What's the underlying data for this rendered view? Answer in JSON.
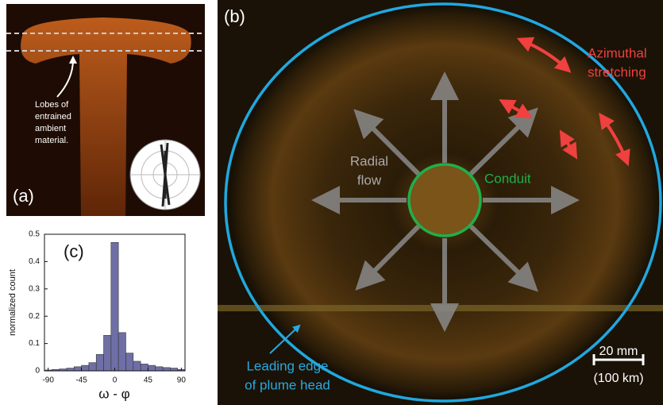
{
  "panel_a": {
    "label": "(a)",
    "annotation": [
      "Lobes of",
      "entrained",
      "ambient",
      "material."
    ]
  },
  "panel_b": {
    "label": "(b)",
    "azimuthal": [
      "Azimuthal",
      "stretching"
    ],
    "radial": [
      "Radial",
      "flow"
    ],
    "conduit": "Conduit",
    "leading_edge": [
      "Leading edge",
      "of plume head"
    ],
    "scale_bar": "20 mm",
    "scale_note": "(100 km)"
  },
  "chart_data": {
    "type": "histogram",
    "label": "(c)",
    "xlabel": "ω - φ",
    "ylabel": "normalized count",
    "bins": [
      -95,
      -85,
      -75,
      -65,
      -55,
      -45,
      -35,
      -25,
      -15,
      -5,
      5,
      15,
      25,
      35,
      45,
      55,
      65,
      75,
      85,
      95
    ],
    "values": [
      0.003,
      0.005,
      0.007,
      0.01,
      0.015,
      0.02,
      0.03,
      0.06,
      0.13,
      0.47,
      0.14,
      0.065,
      0.035,
      0.025,
      0.02,
      0.015,
      0.012,
      0.01,
      0.005
    ],
    "color": "#6f6fa6",
    "xlim": [
      -95,
      95
    ],
    "ylim": [
      0,
      0.5
    ],
    "xticks": [
      -90,
      -45,
      0,
      45,
      90
    ],
    "yticks": [
      0,
      0.1,
      0.2,
      0.3,
      0.4,
      0.5
    ]
  }
}
